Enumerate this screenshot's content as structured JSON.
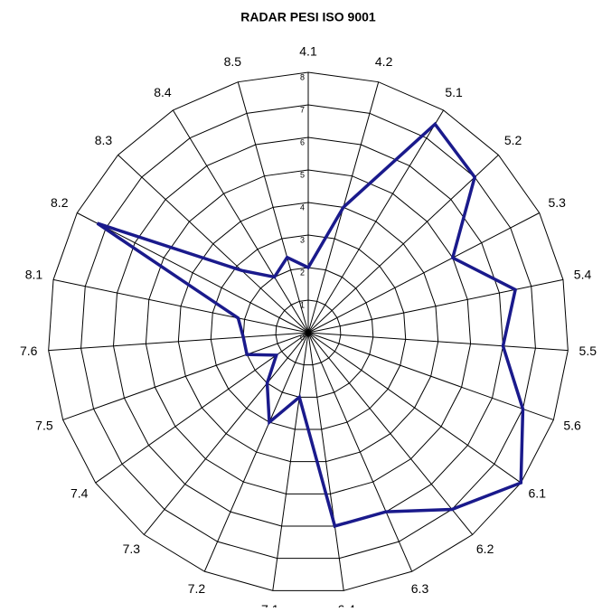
{
  "chart_data": {
    "type": "radar",
    "title": "RADAR PESI ISO 9001",
    "categories": [
      "4.1",
      "4.2",
      "5.1",
      "5.2",
      "5.3",
      "5.4",
      "5.5",
      "5.6",
      "6.1",
      "6.2",
      "6.3",
      "6.4",
      "7.1",
      "7.2",
      "7.3",
      "7.4",
      "7.5",
      "7.6",
      "8.1",
      "8.2",
      "8.3",
      "8.4",
      "8.5"
    ],
    "series": [
      {
        "color": "#1a1a8c",
        "values": [
          2,
          4,
          7.5,
          7,
          5,
          6.5,
          6,
          7,
          8,
          7,
          6,
          6,
          2,
          3,
          2,
          1.2,
          2,
          2,
          2.2,
          7.3,
          2.8,
          2,
          2.4
        ]
      }
    ],
    "ylim": [
      0,
      8
    ],
    "yticks": [
      0,
      1,
      2,
      3,
      4,
      5,
      6,
      7,
      8
    ],
    "grid": true
  }
}
